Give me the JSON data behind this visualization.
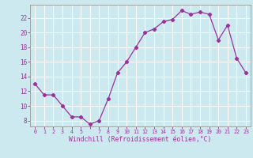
{
  "x": [
    0,
    1,
    2,
    3,
    4,
    5,
    6,
    7,
    8,
    9,
    10,
    11,
    12,
    13,
    14,
    15,
    16,
    17,
    18,
    19,
    20,
    21,
    22,
    23
  ],
  "y": [
    13.0,
    11.5,
    11.5,
    10.0,
    8.5,
    8.5,
    7.5,
    8.0,
    11.0,
    14.5,
    16.0,
    18.0,
    20.0,
    20.5,
    21.5,
    21.8,
    23.0,
    22.5,
    22.8,
    22.5,
    19.0,
    21.0,
    16.5,
    14.5
  ],
  "line_color": "#993399",
  "marker": "D",
  "markersize": 2.2,
  "linewidth": 0.9,
  "bg_color": "#cce9f0",
  "grid_color": "#ffffff",
  "xlabel": "Windchill (Refroidissement éolien,°C)",
  "xlabel_color": "#993399",
  "tick_color": "#993399",
  "ylabel_ticks": [
    8,
    10,
    12,
    14,
    16,
    18,
    20,
    22
  ],
  "xlim": [
    -0.5,
    23.5
  ],
  "ylim": [
    7.2,
    23.8
  ],
  "xtick_labels": [
    "0",
    "1",
    "2",
    "3",
    "4",
    "5",
    "",
    "7",
    "8",
    "9",
    "10",
    "11",
    "12",
    "13",
    "14",
    "15",
    "16",
    "17",
    "18",
    "19",
    "20",
    "21",
    "22",
    "23"
  ]
}
